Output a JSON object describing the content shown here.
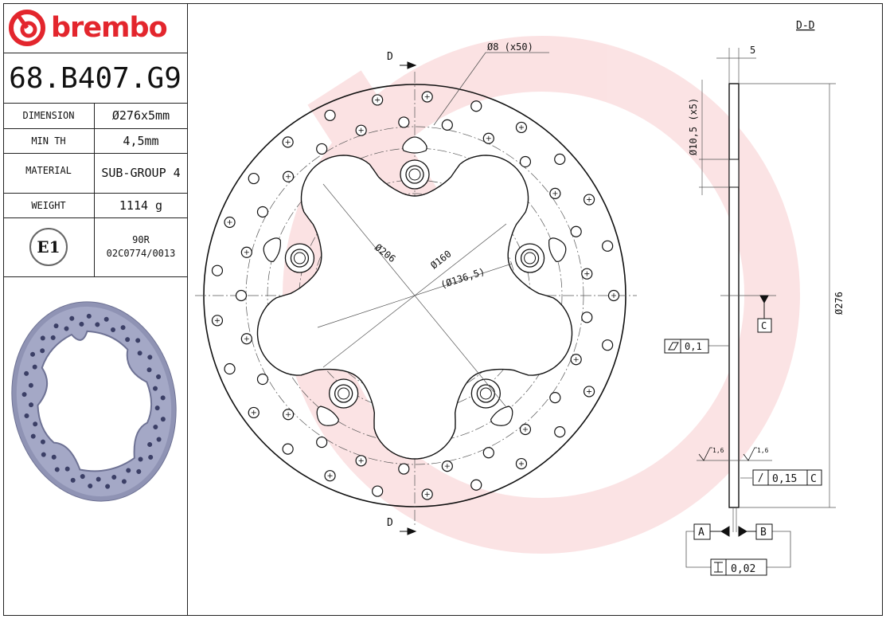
{
  "brand": {
    "name": "brembo",
    "color": "#e3262d"
  },
  "part_number": "68.B407.G9",
  "specs": [
    {
      "label": "DIMENSION",
      "value": "Ø276x5mm"
    },
    {
      "label": "MIN TH",
      "value": "4,5mm"
    },
    {
      "label": "MATERIAL",
      "value": "SUB-GROUP 4"
    },
    {
      "label": "WEIGHT",
      "value": "1114 g"
    }
  ],
  "homologation": {
    "mark": "E1",
    "regulation": "90R",
    "approval_number": "02C0774/0013"
  },
  "drawing": {
    "section_label": "D-D",
    "section_marker": "D",
    "hole_note": "Ø8 (x50)",
    "bolt_hole_note": "Ø10,5 (x5)",
    "thickness": "5",
    "dia_206": "Ø206",
    "dia_160": "Ø160",
    "dia_136": "(Ø136,5)",
    "dia_276": "Ø276",
    "datum_c": "C",
    "datum_a": "A",
    "datum_b": "B",
    "flatness": "0,1",
    "roughness": "1,6",
    "runout": "0,15",
    "runout_datum": "C",
    "parallelism": "0,02",
    "hole_count": 50,
    "bolt_count": 5
  }
}
